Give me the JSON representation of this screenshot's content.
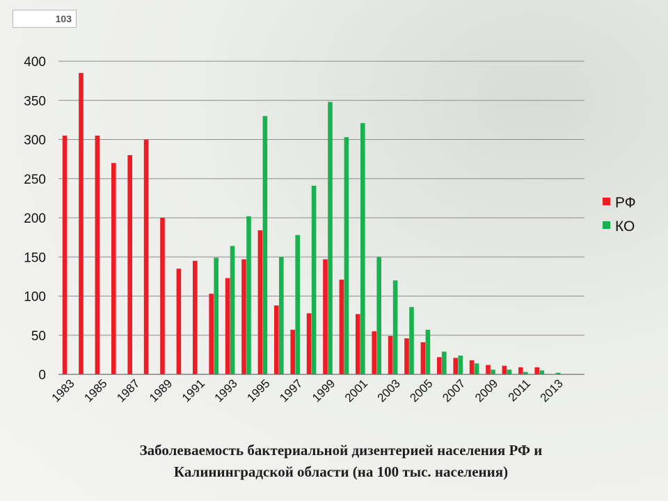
{
  "slide": {
    "page_number": "103",
    "caption_line1": "Заболеваемость бактериальной дизентерией населения РФ и",
    "caption_line2": "Калининградской области (на 100 тыс. населения)"
  },
  "chart_data": {
    "type": "bar",
    "title": "",
    "xlabel": "",
    "ylabel": "",
    "ylim": [
      0,
      400
    ],
    "yticks": [
      0,
      50,
      100,
      150,
      200,
      250,
      300,
      350,
      400
    ],
    "grid": true,
    "legend_position": "right",
    "categories": [
      "1983",
      "1984",
      "1985",
      "1986",
      "1987",
      "1988",
      "1989",
      "1990",
      "1991",
      "1992",
      "1993",
      "1994",
      "1995",
      "1996",
      "1997",
      "1998",
      "1999",
      "2000",
      "2001",
      "2002",
      "2003",
      "2004",
      "2005",
      "2006",
      "2007",
      "2008",
      "2009",
      "2010",
      "2011",
      "2012",
      "2013"
    ],
    "tick_labels": [
      "1983",
      "1985",
      "1987",
      "1989",
      "1991",
      "1993",
      "1995",
      "1997",
      "1999",
      "2001",
      "2003",
      "2005",
      "2007",
      "2009",
      "2011",
      "2013"
    ],
    "series": [
      {
        "name": "РФ",
        "color": "#ee1c25",
        "values": [
          305,
          385,
          305,
          270,
          280,
          300,
          200,
          135,
          145,
          103,
          123,
          147,
          184,
          88,
          57,
          78,
          147,
          121,
          77,
          55,
          49,
          46,
          41,
          22,
          21,
          18,
          12,
          11,
          9,
          9,
          null
        ]
      },
      {
        "name": "КО",
        "color": "#1ab150",
        "values": [
          null,
          null,
          null,
          null,
          null,
          null,
          null,
          null,
          null,
          149,
          164,
          202,
          330,
          150,
          178,
          241,
          348,
          303,
          321,
          150,
          120,
          86,
          57,
          29,
          24,
          14,
          6,
          6,
          3,
          5,
          2
        ]
      }
    ]
  }
}
